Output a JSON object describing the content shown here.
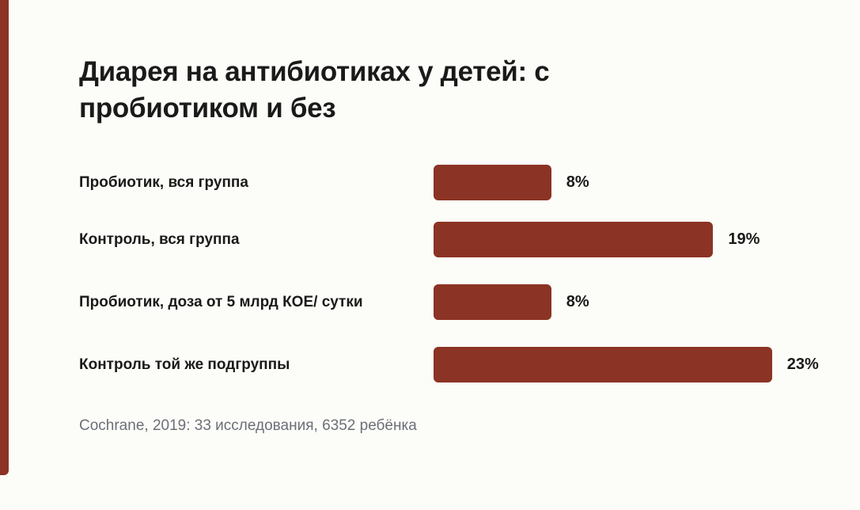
{
  "accent_color": "#8b3324",
  "bar_color": "#8b3324",
  "chart_data": {
    "type": "bar",
    "orientation": "horizontal",
    "title": "Диарея на антибиотиках у детей: с пробиотиком и без",
    "categories": [
      "Пробиотик, вся группа",
      "Контроль, вся группа",
      "Пробиотик, доза от 5 млрд КОЕ/ сутки",
      "Контроль той же подгруппы"
    ],
    "values": [
      8,
      19,
      8,
      23
    ],
    "value_labels": [
      "8%",
      "19%",
      "8%",
      "23%"
    ],
    "unit": "%",
    "xlim": [
      0,
      25
    ],
    "grid": false,
    "legend": "none"
  },
  "source": "Cochrane, 2019: 33 исследования, 6352 ребёнка"
}
